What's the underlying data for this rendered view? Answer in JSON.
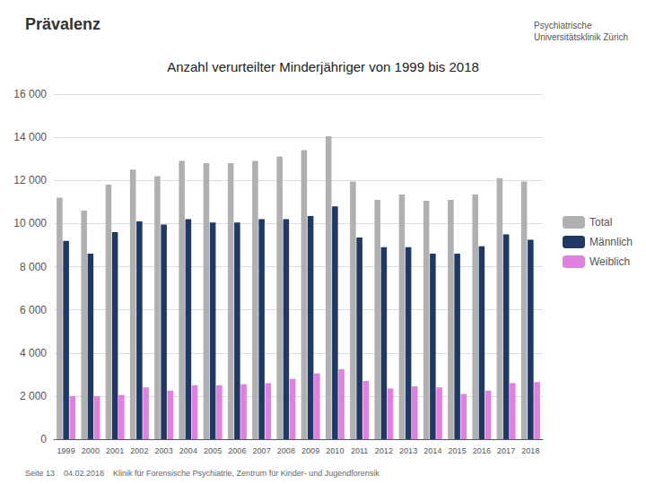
{
  "chart_data": {
    "type": "bar",
    "title": "Anzahl verurteilter Minderjähriger von 1999 bis 2018",
    "annotations": [
      "Prävalenz",
      "Psychiatrische\nUniversitätsklinik Zürich",
      "Seite 13    04.02.2018    Klinik für Forensische Psychiatrie, Zentrum für Kinder- und Jugendforensik"
    ],
    "categories": [
      "1999",
      "2000",
      "2001",
      "2002",
      "2003",
      "2004",
      "2005",
      "2006",
      "2007",
      "2008",
      "2009",
      "2010",
      "2011",
      "2012",
      "2013",
      "2014",
      "2015",
      "2016",
      "2017",
      "2018"
    ],
    "series": [
      {
        "name": "Total",
        "color": "#b0b0b0",
        "values": [
          11200,
          10600,
          11800,
          12500,
          12200,
          12900,
          12800,
          12800,
          12900,
          13100,
          13400,
          14050,
          11950,
          11100,
          11350,
          11050,
          11100,
          11350,
          12100,
          11950
        ]
      },
      {
        "name": "Männlich",
        "color": "#1f3864",
        "values": [
          9200,
          8600,
          9600,
          10100,
          9950,
          10200,
          10050,
          10050,
          10200,
          10200,
          10350,
          10800,
          9350,
          8900,
          8900,
          8600,
          8600,
          8950,
          9500,
          9250
        ]
      },
      {
        "name": "Weiblich",
        "color": "#e080e0",
        "values": [
          2000,
          2000,
          2050,
          2400,
          2250,
          2500,
          2500,
          2550,
          2600,
          2800,
          3050,
          3250,
          2700,
          2350,
          2450,
          2400,
          2100,
          2250,
          2600,
          2650
        ]
      }
    ],
    "ylim": [
      0,
      16000
    ],
    "yticks": [
      0,
      {
        "value": 2000,
        "label": "2 000"
      },
      {
        "value": 4000,
        "label": "4 000"
      },
      {
        "value": 6000,
        "label": "6 000"
      },
      {
        "value": 8000,
        "label": "8 000"
      },
      {
        "value": 10000,
        "label": "10 000"
      },
      {
        "value": 12000,
        "label": "12 000"
      },
      {
        "value": 14000,
        "label": "14 000"
      },
      {
        "value": 16000,
        "label": "16 000"
      }
    ],
    "grid": true,
    "legend": "right"
  }
}
